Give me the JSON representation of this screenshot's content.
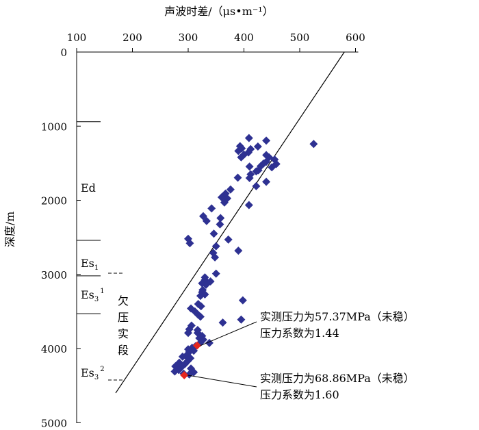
{
  "chart_data": {
    "type": "scatter",
    "xlabel": "声波时差/（μs•m⁻¹）",
    "ylabel": "深度/m",
    "xlim": [
      100,
      600
    ],
    "ylim": [
      0,
      5000
    ],
    "y_inverted": true,
    "x_axis_position": "top",
    "xticks": [
      "100",
      "200",
      "300",
      "400",
      "500",
      "600"
    ],
    "yticks": [
      "0",
      "1000",
      "2000",
      "3000",
      "4000",
      "5000"
    ],
    "points": [
      [
        409,
        1160
      ],
      [
        440,
        1195
      ],
      [
        525,
        1240
      ],
      [
        393,
        1270
      ],
      [
        425,
        1275
      ],
      [
        396,
        1300
      ],
      [
        412,
        1310
      ],
      [
        390,
        1335
      ],
      [
        408,
        1355
      ],
      [
        400,
        1385
      ],
      [
        440,
        1390
      ],
      [
        395,
        1420
      ],
      [
        445,
        1420
      ],
      [
        455,
        1450
      ],
      [
        440,
        1480
      ],
      [
        435,
        1505
      ],
      [
        458,
        1510
      ],
      [
        430,
        1540
      ],
      [
        410,
        1545
      ],
      [
        450,
        1555
      ],
      [
        426,
        1595
      ],
      [
        422,
        1610
      ],
      [
        412,
        1650
      ],
      [
        389,
        1695
      ],
      [
        410,
        1700
      ],
      [
        440,
        1750
      ],
      [
        422,
        1810
      ],
      [
        376,
        1855
      ],
      [
        367,
        1910
      ],
      [
        360,
        1960
      ],
      [
        370,
        1975
      ],
      [
        365,
        2030
      ],
      [
        342,
        2110
      ],
      [
        409,
        2065
      ],
      [
        327,
        2215
      ],
      [
        358,
        2240
      ],
      [
        333,
        2280
      ],
      [
        357,
        2325
      ],
      [
        346,
        2450
      ],
      [
        300,
        2520
      ],
      [
        372,
        2530
      ],
      [
        303,
        2580
      ],
      [
        350,
        2620
      ],
      [
        390,
        2680
      ],
      [
        345,
        2710
      ],
      [
        348,
        2770
      ],
      [
        350,
        2990
      ],
      [
        330,
        3040
      ],
      [
        330,
        3075
      ],
      [
        340,
        3095
      ],
      [
        325,
        3120
      ],
      [
        332,
        3140
      ],
      [
        326,
        3210
      ],
      [
        325,
        3240
      ],
      [
        330,
        3270
      ],
      [
        322,
        3290
      ],
      [
        398,
        3350
      ],
      [
        318,
        3400
      ],
      [
        323,
        3430
      ],
      [
        305,
        3460
      ],
      [
        312,
        3500
      ],
      [
        318,
        3545
      ],
      [
        322,
        3570
      ],
      [
        395,
        3610
      ],
      [
        362,
        3650
      ],
      [
        306,
        3690
      ],
      [
        302,
        3740
      ],
      [
        317,
        3750
      ],
      [
        300,
        3790
      ],
      [
        317,
        3790
      ],
      [
        325,
        3830
      ],
      [
        320,
        3860
      ],
      [
        327,
        3880
      ],
      [
        322,
        3920
      ],
      [
        338,
        3925
      ],
      [
        313,
        3970
      ],
      [
        307,
        3990
      ],
      [
        300,
        4010
      ],
      [
        310,
        4030
      ],
      [
        302,
        4045
      ],
      [
        296,
        4100
      ],
      [
        290,
        4110
      ],
      [
        304,
        4130
      ],
      [
        299,
        4170
      ],
      [
        284,
        4190
      ],
      [
        294,
        4210
      ],
      [
        277,
        4240
      ],
      [
        288,
        4250
      ],
      [
        305,
        4270
      ],
      [
        283,
        4290
      ],
      [
        276,
        4310
      ],
      [
        310,
        4320
      ],
      [
        292,
        4340
      ],
      [
        302,
        4350
      ]
    ],
    "highlighted_points": [
      {
        "x": 316,
        "y": 3960
      },
      {
        "x": 293,
        "y": 4360
      }
    ],
    "trend_line": [
      [
        170,
        4600
      ],
      [
        580,
        0
      ]
    ],
    "colors": {
      "points": "#2E3192",
      "highlight": "#E5271E",
      "line": "#000000"
    },
    "formations": [
      {
        "label": "Ed"
      },
      {
        "label": "Es",
        "sub": "1"
      },
      {
        "label": "Es",
        "sub": "3",
        "sup": "1"
      },
      {
        "label": "Es",
        "sub": "3",
        "sup": "2"
      }
    ],
    "formation_boundaries": [
      940,
      2540,
      3020,
      3530
    ],
    "zone_label": [
      "欠",
      "压",
      "实",
      "段"
    ],
    "annotations": [
      {
        "lines": [
          "实测压力为57.37MPa（未稳）",
          "压力系数为1.44"
        ]
      },
      {
        "lines": [
          "实测压力为68.86MPa（未稳）",
          "压力系数为1.60"
        ]
      }
    ]
  }
}
